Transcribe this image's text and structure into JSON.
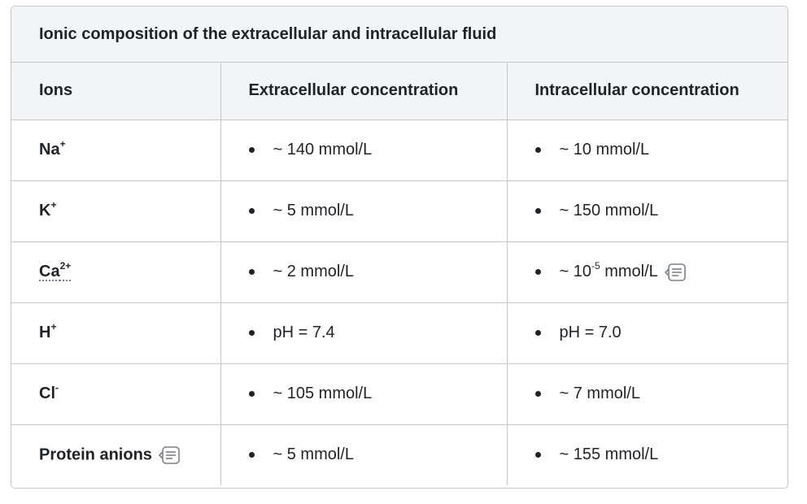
{
  "table": {
    "caption": "Ionic composition of the extracellular and intracellular fluid",
    "headers": [
      "Ions",
      "Extracellular concentration",
      "Intracellular concentration"
    ],
    "rows": [
      {
        "ion": "Na",
        "ion_sup": "+",
        "extra": "~ 140 mmol/L",
        "intra": "~ 10 mmol/L"
      },
      {
        "ion": "K",
        "ion_sup": "+",
        "extra": "~ 5 mmol/L",
        "intra": "~ 150 mmol/L"
      },
      {
        "ion": "Ca",
        "ion_sup": "2+",
        "extra": "~ 2 mmol/L",
        "intra_pre": "~ 10",
        "intra_sup": "-5",
        "intra_post": " mmol/L",
        "intra_icon": "note-icon"
      },
      {
        "ion": "H",
        "ion_sup": "+",
        "extra": "pH = 7.4",
        "intra": "pH = 7.0"
      },
      {
        "ion": "Cl",
        "ion_sup": "-",
        "extra": "~ 105 mmol/L",
        "intra": "~ 7 mmol/L"
      },
      {
        "ion": "Protein anions",
        "ion_icon": "note-icon",
        "extra": "~ 5 mmol/L",
        "intra": "~ 155 mmol/L"
      }
    ]
  },
  "colors": {
    "border": "#c4c7cb",
    "header_bg": "#f3f4f6",
    "icon": "#7a8088"
  }
}
